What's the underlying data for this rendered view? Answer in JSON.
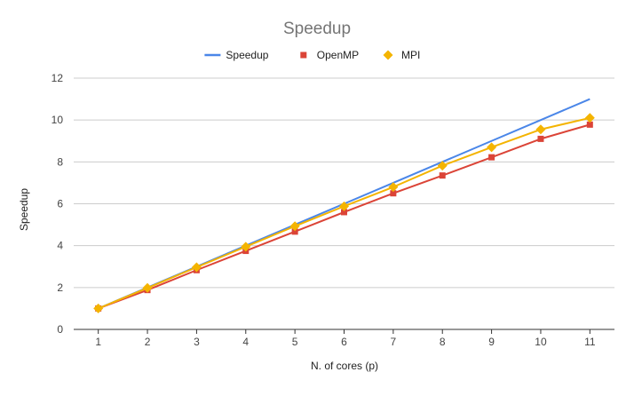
{
  "chart_data": {
    "type": "line",
    "title": "Speedup",
    "xlabel": "N. of cores (p)",
    "ylabel": "Speedup",
    "categories": [
      "1",
      "2",
      "3",
      "4",
      "5",
      "6",
      "7",
      "8",
      "9",
      "10",
      "11"
    ],
    "y_ticks": [
      "0",
      "2",
      "4",
      "6",
      "8",
      "10",
      "12"
    ],
    "ylim": [
      0,
      12
    ],
    "grid": true,
    "legend_position": "top",
    "series": [
      {
        "name": "Speedup",
        "color": "#4a86e8",
        "marker": "none",
        "values": [
          1,
          2,
          3,
          4,
          5,
          6,
          7,
          8,
          9,
          10,
          11
        ]
      },
      {
        "name": "OpenMP",
        "color": "#db4437",
        "marker": "square",
        "values": [
          1,
          1.88,
          2.83,
          3.75,
          4.67,
          5.6,
          6.5,
          7.35,
          8.22,
          9.1,
          9.78
        ]
      },
      {
        "name": "MPI",
        "color": "#f4b400",
        "marker": "diamond",
        "values": [
          1,
          1.98,
          2.97,
          3.95,
          4.93,
          5.88,
          6.8,
          7.82,
          8.7,
          9.55,
          10.1
        ]
      }
    ]
  }
}
